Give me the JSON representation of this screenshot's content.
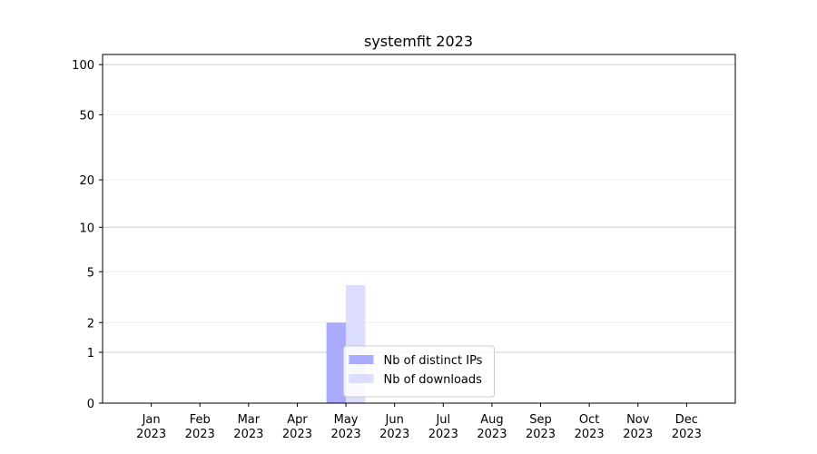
{
  "chart_data": {
    "type": "bar",
    "title": "systemfit 2023",
    "categories": [
      "Jan 2023",
      "Feb 2023",
      "Mar 2023",
      "Apr 2023",
      "May 2023",
      "Jun 2023",
      "Jul 2023",
      "Aug 2023",
      "Sep 2023",
      "Oct 2023",
      "Nov 2023",
      "Dec 2023"
    ],
    "series": [
      {
        "name": "Nb of distinct IPs",
        "color": "#aaaaff",
        "values": [
          0,
          0,
          0,
          0,
          2,
          0,
          0,
          0,
          0,
          0,
          0,
          0
        ]
      },
      {
        "name": "Nb of downloads",
        "color": "#ddddff",
        "values": [
          0,
          0,
          0,
          0,
          4,
          0,
          0,
          0,
          0,
          0,
          0,
          0
        ]
      }
    ],
    "y_scale": "log1p",
    "ylim": [
      0,
      115
    ],
    "yticks": [
      0,
      1,
      2,
      5,
      10,
      20,
      50,
      100
    ],
    "grid": true,
    "legend": "lower center"
  }
}
